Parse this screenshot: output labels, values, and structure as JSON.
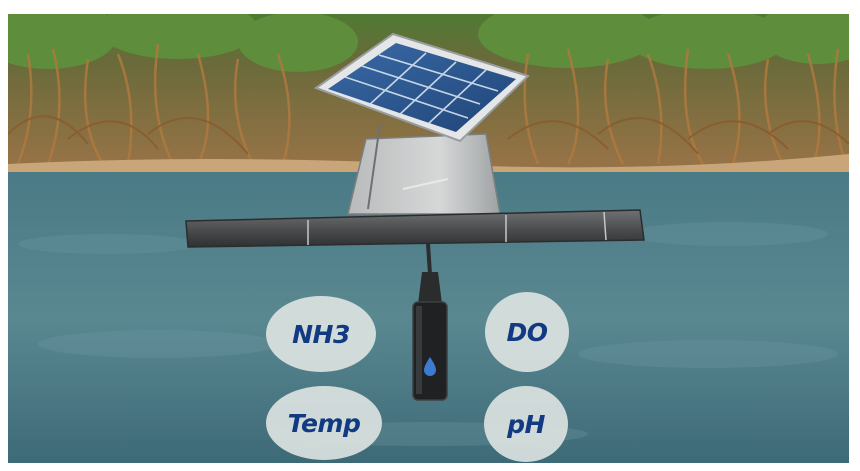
{
  "sensor_labels": [
    {
      "id": "nh3",
      "text": "NH3"
    },
    {
      "id": "do",
      "text": "DO"
    },
    {
      "id": "temp",
      "text": "Temp"
    },
    {
      "id": "ph",
      "text": "pH"
    }
  ],
  "colors": {
    "water": "#4d7c88",
    "foliage": "#5c8a3a",
    "sand": "#c6a37a",
    "label_text": "#123a82",
    "label_bg": "#dee4e2"
  },
  "icons": [
    "solar-panel-icon",
    "water-drop-icon"
  ]
}
